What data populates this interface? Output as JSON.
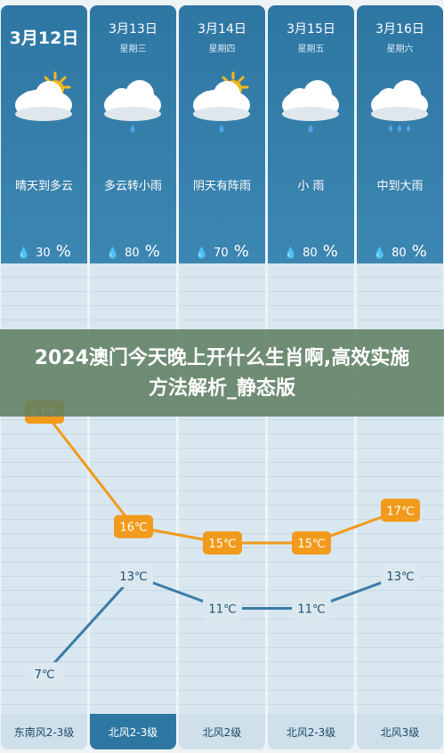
{
  "days": [
    {
      "date": "3月12日",
      "weekday": "",
      "condition": "晴天到多云",
      "humidity": "30",
      "wind": "东南风2-3级",
      "icon": "sun-cloud-icon"
    },
    {
      "date": "3月13日",
      "weekday": "星期三",
      "condition": "多云转小雨",
      "humidity": "80",
      "wind": "北风2-3级",
      "icon": "rain-cloud-icon"
    },
    {
      "date": "3月14日",
      "weekday": "星期四",
      "condition": "阴天有阵雨",
      "humidity": "70",
      "wind": "北风2级",
      "icon": "sun-cloud-rain-icon"
    },
    {
      "date": "3月15日",
      "weekday": "星期五",
      "condition": "小 雨",
      "humidity": "80",
      "wind": "北风2-3级",
      "icon": "rain-cloud-icon"
    },
    {
      "date": "3月16日",
      "weekday": "星期六",
      "condition": "中到大雨",
      "humidity": "80",
      "wind": "北风3级",
      "icon": "heavy-rain-cloud-icon"
    }
  ],
  "banner": {
    "title": "2024澳门今天晚上开什么生肖啊,高效实施方法解析_静态版"
  },
  "colors": {
    "high": "#f29a1b",
    "low": "#3a7ca5",
    "panel": "#2f77a3",
    "grid": "#d9e7f0"
  },
  "chart_data": {
    "type": "line",
    "categories": [
      "3月12日",
      "3月13日",
      "3月14日",
      "3月15日",
      "3月16日"
    ],
    "series": [
      {
        "values": [
          23,
          16,
          15,
          15,
          17
        ],
        "labels": [
          "23℃",
          "16℃",
          "15℃",
          "15℃",
          "17℃"
        ]
      },
      {
        "values": [
          7,
          13,
          11,
          11,
          13
        ],
        "labels": [
          "7℃",
          "13℃",
          "11℃",
          "11℃",
          "13℃"
        ]
      }
    ],
    "ylim": [
      7,
      23
    ],
    "grid": true
  }
}
